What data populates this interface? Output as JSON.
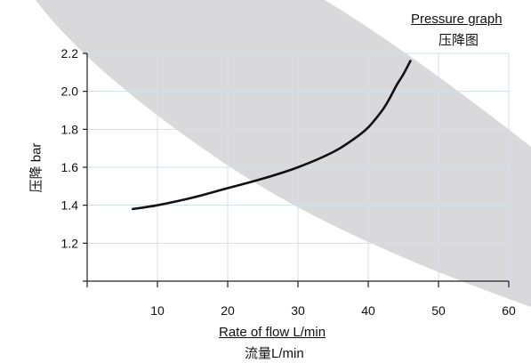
{
  "title": {
    "line1": "Pressure graph",
    "line2": "压降图"
  },
  "xlabel": {
    "line1": "Rate of flow L/min",
    "line2": "流量L/min"
  },
  "ylabel": "压降 bar",
  "colors": {
    "curve": "#111111",
    "grid": "#cfe0ef",
    "band": "#d9d9db",
    "axis": "#222222"
  },
  "chart_data": {
    "type": "line",
    "title": "Pressure graph 压降图",
    "xlabel": "Rate of flow L/min 流量L/min",
    "ylabel": "压降 bar",
    "xlim": [
      0,
      60
    ],
    "ylim": [
      1.0,
      2.2
    ],
    "xticks": [
      10,
      20,
      30,
      40,
      50,
      60
    ],
    "yticks": [
      1.2,
      1.4,
      1.6,
      1.8,
      2.0,
      2.2
    ],
    "xtick_labels": [
      "10",
      "20",
      "30",
      "40",
      "50",
      "60"
    ],
    "ytick_labels": [
      "1.2",
      "1.4",
      "1.6",
      "1.8",
      "2.0",
      "2.2"
    ],
    "grid": true,
    "legend": "none",
    "series": [
      {
        "x": [
          6.5,
          10,
          15,
          20,
          25,
          30,
          35,
          38,
          40,
          42,
          43,
          44,
          45,
          46
        ],
        "y": [
          1.38,
          1.4,
          1.44,
          1.49,
          1.54,
          1.6,
          1.68,
          1.75,
          1.81,
          1.9,
          1.96,
          2.03,
          2.09,
          2.16
        ]
      }
    ]
  }
}
